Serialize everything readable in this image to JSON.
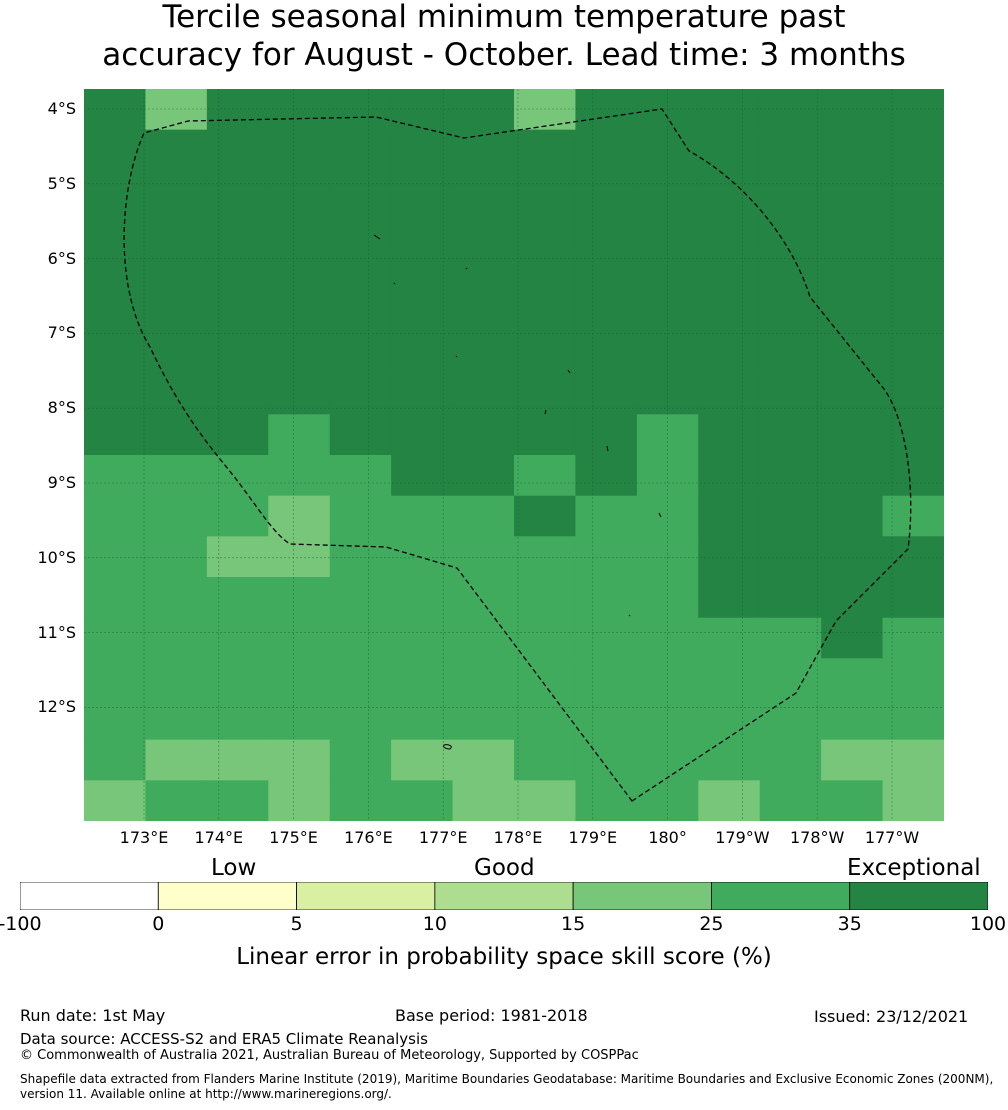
{
  "title": {
    "line1": "Tercile seasonal minimum temperature past",
    "line2": "accuracy for August - October. Lead time: 3 months"
  },
  "map": {
    "lat_labels": [
      "4°S",
      "5°S",
      "6°S",
      "7°S",
      "8°S",
      "9°S",
      "10°S",
      "11°S",
      "12°S"
    ],
    "lon_labels": [
      "173°E",
      "174°E",
      "175°E",
      "176°E",
      "177°E",
      "178°E",
      "179°E",
      "180°",
      "179°W",
      "178°W",
      "177°W"
    ],
    "grid_columns": 14,
    "grid_rows": 18,
    "cell_colors": {
      "A": "#238443",
      "B": "#41ab5d",
      "C": "#78c679"
    },
    "cells": [
      "ACAAAAACAAAAAA",
      "AAAAAAAAAAAAAA",
      "AAAAAAAAAAAAAA",
      "AAAAAAAAAAAAAA",
      "AAAAAAAAAAAAAA",
      "AAAAAAAAAAAAAA",
      "AAAAAAAAAAAAAA",
      "AAAAAAAAAAAAAA",
      "AAABAAAAABAAAA",
      "BBBBBAABABAAAA",
      "BBBCBBBABBAAAB",
      "BBCCBBBBBBAAAA",
      "BBBBBBBBBBAAAA",
      "BBBBBBBBBBBBAB",
      "BBBBBBBBBBBBBB",
      "BBBBBBBBBBBBBB",
      "BCCCBCCBBBBBCC",
      "CBBCBBCCBBCBBC"
    ]
  },
  "colorbar": {
    "categories": [
      "Low",
      "Good",
      "Exceptional"
    ],
    "ticks": [
      "-100",
      "0",
      "5",
      "10",
      "15",
      "25",
      "35",
      "100"
    ],
    "colors": [
      "#ffffff",
      "#ffffcc",
      "#d9f0a3",
      "#addd8e",
      "#78c679",
      "#41ab5d",
      "#238443"
    ],
    "label": "Linear error in probability space skill score (%)"
  },
  "footer": {
    "run_date": "Run date: 1st May",
    "base_period": "Base period: 1981-2018",
    "issued": "Issued: 23/12/2021",
    "data_source": "Data source: ACCESS-S2 and ERA5 Climate Reanalysis",
    "copyright": "© Commonwealth of Australia 2021, Australian Bureau of Meteorology, Supported by COSPPac",
    "shapefile_line1": "Shapefile data extracted from Flanders Marine Institute (2019), Maritime Boundaries Geodatabase: Maritime Boundaries and Exclusive Economic Zones (200NM),",
    "shapefile_line2": "version 11. Available online at http://www.marineregions.org/."
  }
}
